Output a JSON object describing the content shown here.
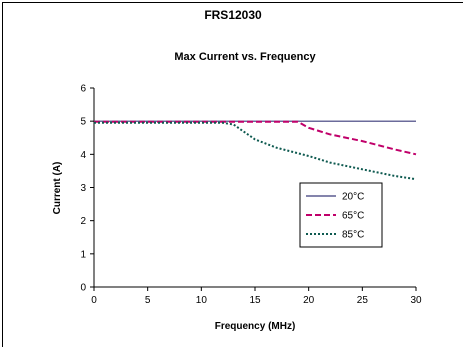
{
  "chart_data": {
    "type": "line",
    "title": "FRS12030",
    "subtitle": "Max Current vs. Frequency",
    "xlabel": "Frequency (MHz)",
    "ylabel": "Current (A)",
    "xlim": [
      0,
      30
    ],
    "ylim": [
      0,
      6
    ],
    "xticks": [
      0,
      5,
      10,
      15,
      20,
      25,
      30
    ],
    "yticks": [
      0,
      1,
      2,
      3,
      4,
      5,
      6
    ],
    "grid": false,
    "legend_position": "right",
    "series": [
      {
        "name": "20°C",
        "color": "#3a3a7a",
        "dash": "solid",
        "x": [
          0,
          5,
          10,
          15,
          20,
          25,
          30
        ],
        "y": [
          5,
          5,
          5,
          5,
          5,
          5,
          5
        ]
      },
      {
        "name": "65°C",
        "color": "#c0006a",
        "dash": "dashed",
        "x": [
          0,
          5,
          10,
          15,
          19,
          20,
          22,
          25,
          28,
          30
        ],
        "y": [
          4.98,
          4.98,
          4.98,
          4.98,
          4.98,
          4.8,
          4.6,
          4.4,
          4.15,
          4.0
        ]
      },
      {
        "name": "85°C",
        "color": "#0e5a50",
        "dash": "dotted",
        "x": [
          0,
          5,
          10,
          12,
          13,
          15,
          17,
          20,
          22,
          25,
          28,
          30
        ],
        "y": [
          4.95,
          4.95,
          4.95,
          4.95,
          4.9,
          4.45,
          4.2,
          3.95,
          3.75,
          3.55,
          3.35,
          3.25
        ]
      }
    ]
  }
}
